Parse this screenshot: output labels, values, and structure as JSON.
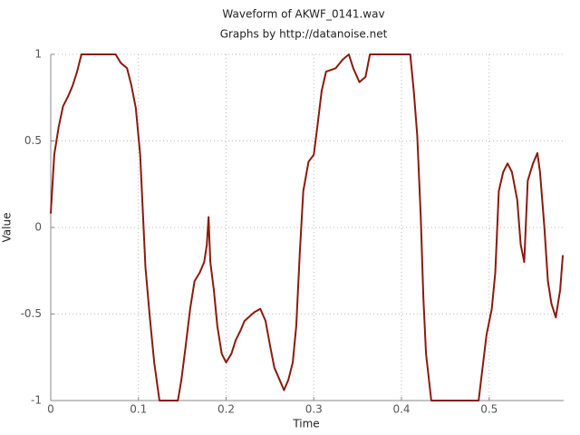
{
  "chart_data": {
    "type": "line",
    "title": "Waveform of AKWF_0141.wav",
    "subtitle": "Graphs by http://datanoise.net",
    "x_label": "Time",
    "y_label": "Value",
    "color": "#8b1a0e",
    "x": [
      0,
      0.004,
      0.009,
      0.014,
      0.02,
      0.025,
      0.03,
      0.035,
      0.074,
      0.08,
      0.087,
      0.092,
      0.097,
      0.102,
      0.108,
      0.113,
      0.118,
      0.124,
      0.145,
      0.149,
      0.154,
      0.159,
      0.164,
      0.17,
      0.175,
      0.178,
      0.18,
      0.182,
      0.186,
      0.19,
      0.195,
      0.2,
      0.206,
      0.211,
      0.216,
      0.221,
      0.232,
      0.239,
      0.245,
      0.25,
      0.255,
      0.261,
      0.266,
      0.271,
      0.276,
      0.28,
      0.284,
      0.288,
      0.294,
      0.3,
      0.304,
      0.309,
      0.314,
      0.325,
      0.333,
      0.34,
      0.345,
      0.352,
      0.359,
      0.364,
      0.41,
      0.414,
      0.418,
      0.422,
      0.425,
      0.428,
      0.434,
      0.488,
      0.492,
      0.497,
      0.503,
      0.507,
      0.511,
      0.516,
      0.521,
      0.526,
      0.532,
      0.536,
      0.54,
      0.544,
      0.55,
      0.555,
      0.558,
      0.563,
      0.567,
      0.571,
      0.576,
      0.581,
      0.584
    ],
    "values": [
      0.08,
      0.42,
      0.58,
      0.7,
      0.76,
      0.82,
      0.9,
      1,
      1,
      0.95,
      0.92,
      0.82,
      0.69,
      0.42,
      -0.23,
      -0.52,
      -0.78,
      -1,
      -1,
      -0.88,
      -0.68,
      -0.47,
      -0.31,
      -0.26,
      -0.2,
      -0.1,
      0.06,
      -0.2,
      -0.36,
      -0.57,
      -0.73,
      -0.78,
      -0.73,
      -0.65,
      -0.6,
      -0.54,
      -0.49,
      -0.47,
      -0.54,
      -0.68,
      -0.81,
      -0.88,
      -0.94,
      -0.88,
      -0.78,
      -0.57,
      -0.15,
      0.21,
      0.38,
      0.42,
      0.58,
      0.79,
      0.9,
      0.92,
      0.97,
      1,
      0.92,
      0.84,
      0.87,
      1,
      1,
      0.79,
      0.53,
      0.06,
      -0.41,
      -0.73,
      -1,
      -1,
      -0.83,
      -0.62,
      -0.47,
      -0.26,
      0.21,
      0.32,
      0.37,
      0.32,
      0.16,
      -0.1,
      -0.2,
      0.27,
      0.37,
      0.43,
      0.32,
      0,
      -0.31,
      -0.44,
      -0.52,
      -0.36,
      -0.16
    ],
    "xlim": [
      0,
      0.585
    ],
    "ylim": [
      -1,
      1
    ],
    "xticks": [
      0,
      0.1,
      0.2,
      0.3,
      0.4,
      0.5
    ],
    "yticks": [
      -1,
      -0.5,
      0,
      0.5,
      1
    ],
    "grid": true
  }
}
